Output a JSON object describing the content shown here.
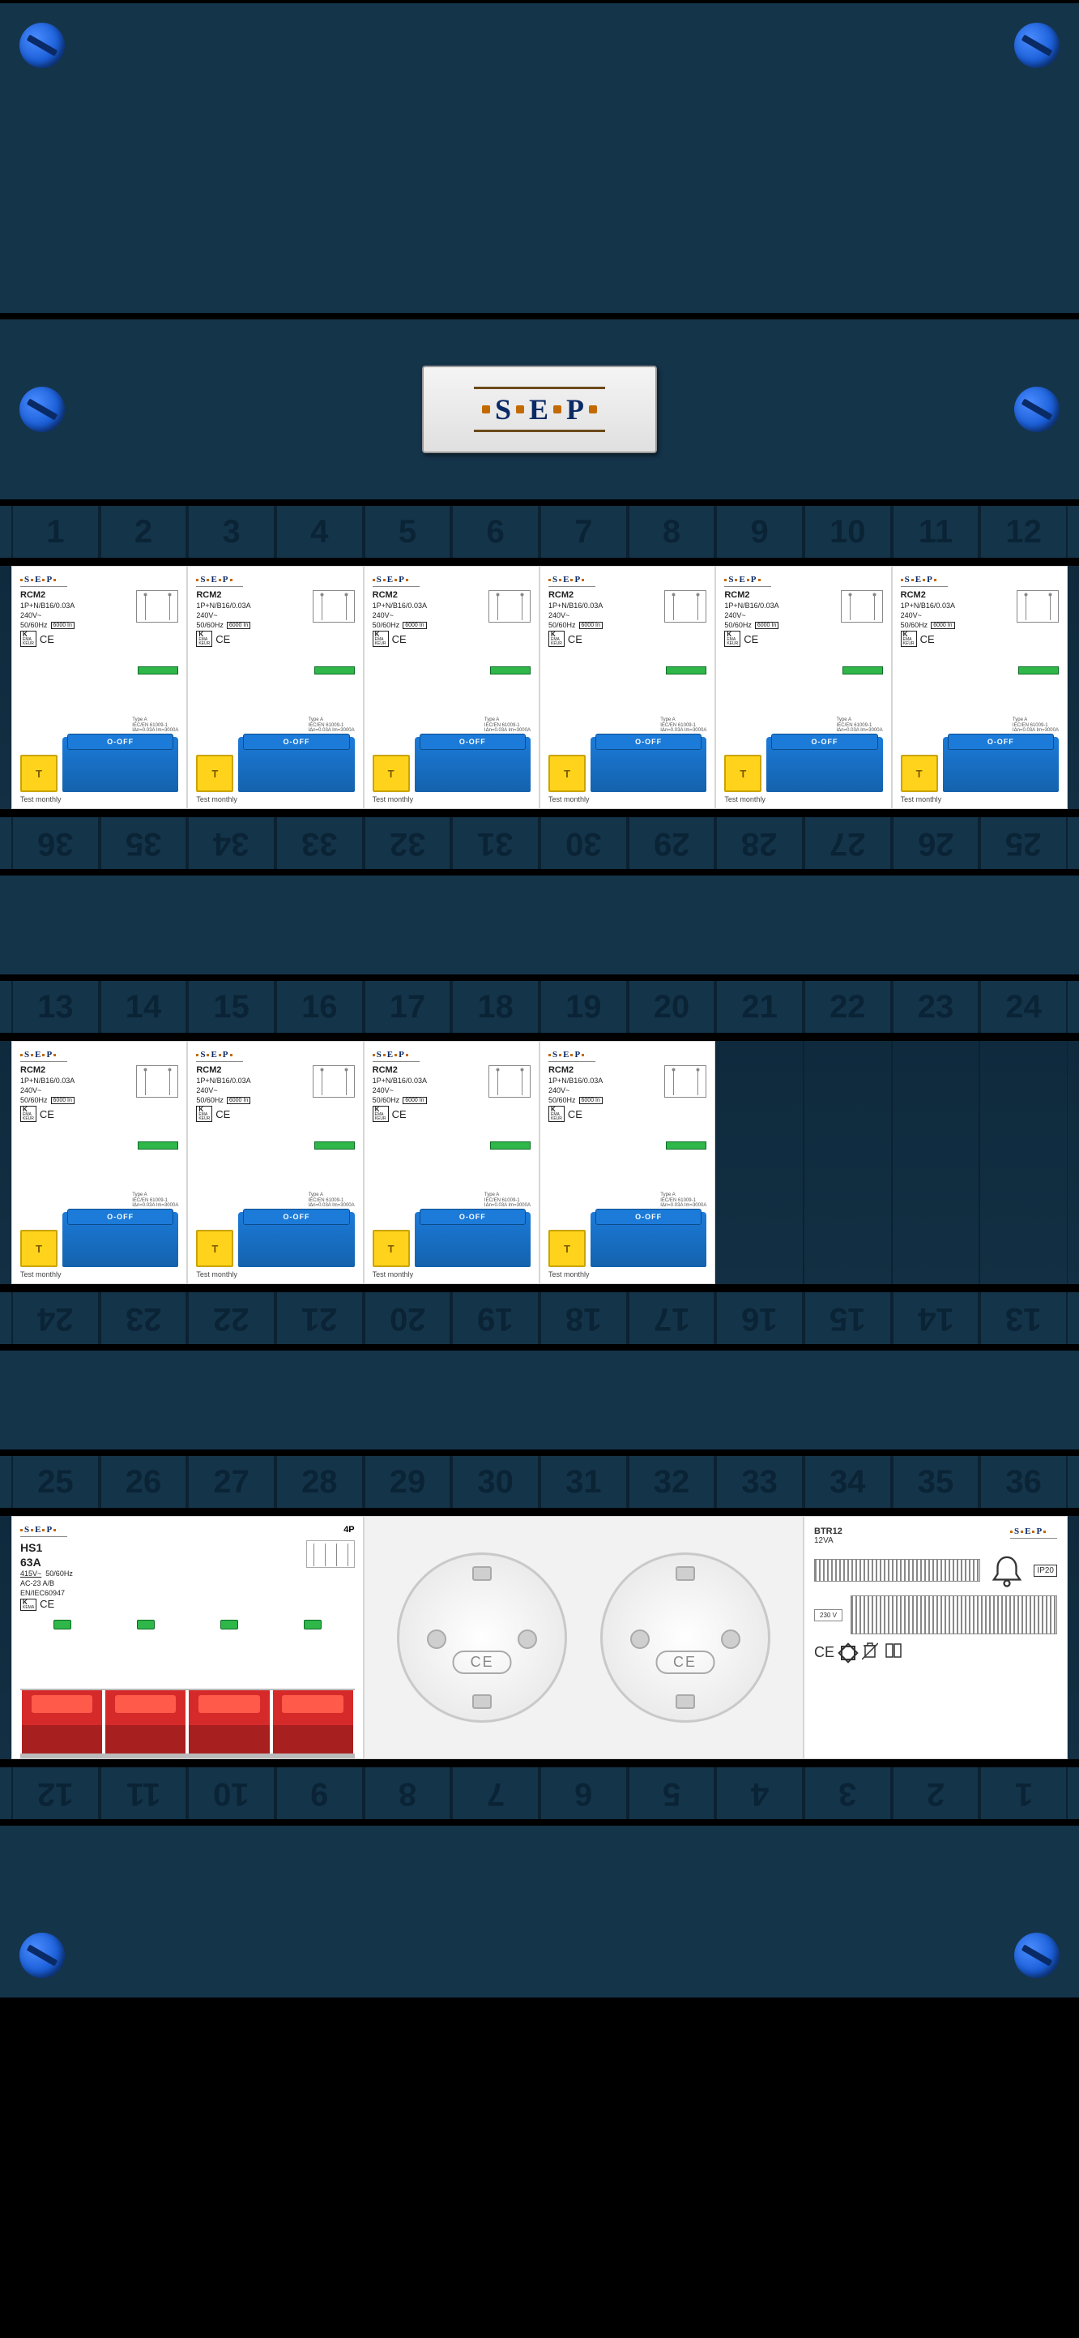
{
  "brand": {
    "letters": [
      "S",
      "E",
      "P"
    ]
  },
  "strips": {
    "row1_top": [
      1,
      2,
      3,
      4,
      5,
      6,
      7,
      8,
      9,
      10,
      11,
      12
    ],
    "row1_bottom": [
      36,
      35,
      34,
      33,
      32,
      31,
      30,
      29,
      28,
      27,
      26,
      25
    ],
    "row2_top": [
      13,
      14,
      15,
      16,
      17,
      18,
      19,
      20,
      21,
      22,
      23,
      24
    ],
    "row2_bottom": [
      24,
      23,
      22,
      21,
      20,
      19,
      18,
      17,
      16,
      15,
      14,
      13
    ],
    "row3_top": [
      25,
      26,
      27,
      28,
      29,
      30,
      31,
      32,
      33,
      34,
      35,
      36
    ],
    "row3_bottom": [
      12,
      11,
      10,
      9,
      8,
      7,
      6,
      5,
      4,
      3,
      2,
      1
    ]
  },
  "rcbo_common": {
    "brand": "S·E·P",
    "model": "RCM2",
    "rating": "1P+N/B16/0.03A",
    "voltage": "240V~",
    "freq": "50/60Hz",
    "icn": "6000 In",
    "kema": "KEMA KEUR",
    "ce": "CE",
    "type_txt": "Type A",
    "std_txt": "IEC/EN 61009-1",
    "idn_txt": "IΔn=0.03A  Im=3000A",
    "test_btn": "T",
    "switch_lbl": "O-OFF",
    "footer": "Test  monthly"
  },
  "rcbo_rows": {
    "row1_count": 6,
    "row2_count": 4
  },
  "main_switch": {
    "brand": "S·E·P",
    "model": "HS1",
    "amps": "63A",
    "voltage": "415V~",
    "freq": "50/60Hz",
    "ac_class": "AC-23 A/B",
    "std": "EN/IEC60947",
    "poles": "4P",
    "kema": "KEMA",
    "ce": "CE",
    "pole_count": 4
  },
  "socket": {
    "ce": "CE"
  },
  "bell": {
    "brand": "S·E·P",
    "model": "BTR12",
    "va": "12VA",
    "ip": "IP20",
    "prim": "230  V",
    "ce": "CE"
  },
  "colors": {
    "panel": "#14344a",
    "screw": "#1b5fd8",
    "yellow": "#ffd31c",
    "blue": "#1c7bd9",
    "green": "#2fb74a",
    "red": "#d62a2a"
  }
}
